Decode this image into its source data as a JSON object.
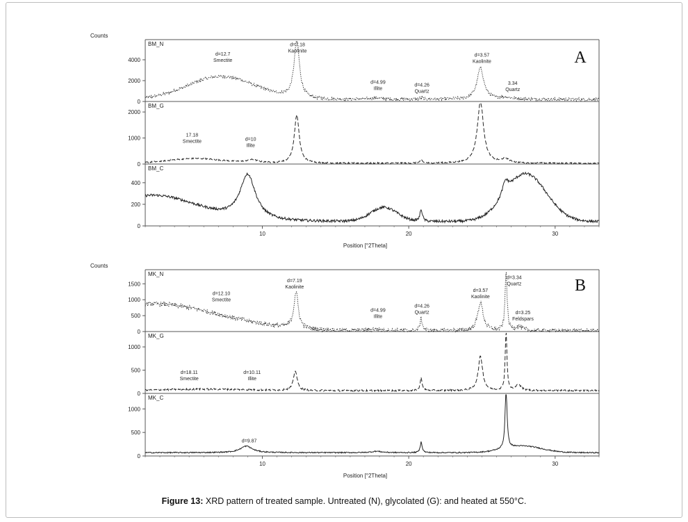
{
  "caption": {
    "label": "Figure 13:",
    "text": "XRD pattern of treated sample. Untreated (N), glycolated (G): and heated at 550°C."
  },
  "chart_data": [
    {
      "type": "line",
      "figure_label": "A",
      "ylabel": "Counts",
      "xlabel": "Position [°2Theta]",
      "xlim": [
        2,
        33
      ],
      "x_ticks": [
        10,
        20,
        30
      ],
      "line_color": "#222222",
      "panels": [
        {
          "name": "BM_N",
          "style": "dotted",
          "ylim": [
            0,
            5800
          ],
          "y_ticks": [
            0,
            2000,
            4000
          ],
          "baseline": 200,
          "broad": [
            {
              "center": 7.2,
              "width": 2.3,
              "height": 2200
            }
          ],
          "noise": 150,
          "peaks": [
            {
              "x": 12.35,
              "height": 5600,
              "width": 0.22
            },
            {
              "x": 17.75,
              "height": 120,
              "width": 0.5
            },
            {
              "x": 20.85,
              "height": 150,
              "width": 0.12
            },
            {
              "x": 24.9,
              "height": 3000,
              "width": 0.28
            },
            {
              "x": 26.6,
              "height": 180,
              "width": 0.5
            }
          ],
          "annotations": [
            {
              "x": 12.4,
              "y": 5300,
              "lines": [
                "d=7.18",
                "Kaolinite"
              ]
            },
            {
              "x": 7.3,
              "y": 4400,
              "lines": [
                "d=12.7",
                "Smectite"
              ]
            },
            {
              "x": 17.9,
              "y": 1700,
              "lines": [
                "d=4.99",
                "Illite"
              ]
            },
            {
              "x": 20.9,
              "y": 1450,
              "lines": [
                "d=4.26",
                "Quartz"
              ]
            },
            {
              "x": 25.0,
              "y": 4300,
              "lines": [
                "d=3.57",
                "Kaolinite"
              ]
            },
            {
              "x": 27.1,
              "y": 1600,
              "lines": [
                "3.34",
                "Quartz"
              ]
            }
          ]
        },
        {
          "name": "BM_G",
          "style": "dashed",
          "ylim": [
            0,
            2350
          ],
          "y_ticks": [
            0,
            1000,
            2000
          ],
          "baseline": 30,
          "broad": [
            {
              "center": 5.4,
              "width": 1.8,
              "height": 180
            }
          ],
          "noise": 25,
          "peaks": [
            {
              "x": 9.3,
              "height": 120,
              "width": 0.5
            },
            {
              "x": 12.35,
              "height": 1850,
              "width": 0.2
            },
            {
              "x": 20.85,
              "height": 120,
              "width": 0.1
            },
            {
              "x": 24.9,
              "height": 2350,
              "width": 0.26
            },
            {
              "x": 26.6,
              "height": 160,
              "width": 0.3
            }
          ],
          "annotations": [
            {
              "x": 5.2,
              "y": 1050,
              "lines": [
                "17.18",
                "Smectite"
              ]
            },
            {
              "x": 9.2,
              "y": 900,
              "lines": [
                "d=10",
                "Illite"
              ]
            }
          ]
        },
        {
          "name": "BM_C",
          "style": "solid",
          "ylim": [
            0,
            560
          ],
          "y_ticks": [
            0,
            200,
            400
          ],
          "baseline": 40,
          "broad": [
            {
              "center": 2.5,
              "width": 3.0,
              "height": 240
            },
            {
              "center": 18.3,
              "width": 0.9,
              "height": 130
            },
            {
              "center": 28.0,
              "width": 1.4,
              "height": 440
            }
          ],
          "noise": 12,
          "peaks": [
            {
              "x": 9.0,
              "height": 420,
              "width": 0.65
            },
            {
              "x": 20.85,
              "height": 110,
              "width": 0.1
            },
            {
              "x": 26.6,
              "height": 120,
              "width": 0.25
            }
          ],
          "annotations": []
        }
      ]
    },
    {
      "type": "line",
      "figure_label": "B",
      "ylabel": "Counts",
      "xlabel": "Position [°2Theta]",
      "xlim": [
        2,
        33
      ],
      "x_ticks": [
        10,
        20,
        30
      ],
      "line_color": "#222222",
      "panels": [
        {
          "name": "MK_N",
          "style": "dotted",
          "ylim": [
            0,
            1900
          ],
          "y_ticks": [
            0,
            500,
            1000,
            1500
          ],
          "baseline": 20,
          "broad": [
            {
              "center": 2.5,
              "width": 4.6,
              "height": 850
            }
          ],
          "noise": 70,
          "peaks": [
            {
              "x": 12.3,
              "height": 1150,
              "width": 0.18
            },
            {
              "x": 17.75,
              "height": 50,
              "width": 0.5
            },
            {
              "x": 20.85,
              "height": 380,
              "width": 0.1
            },
            {
              "x": 24.9,
              "height": 900,
              "width": 0.22
            },
            {
              "x": 26.65,
              "height": 1900,
              "width": 0.08
            },
            {
              "x": 27.5,
              "height": 130,
              "width": 0.3
            }
          ],
          "annotations": [
            {
              "x": 12.2,
              "y": 1550,
              "lines": [
                "d=7.19",
                "Kaolinite"
              ]
            },
            {
              "x": 7.2,
              "y": 1150,
              "lines": [
                "d=12.10",
                "Smectite"
              ]
            },
            {
              "x": 17.9,
              "y": 620,
              "lines": [
                "d=4.99",
                "Illite"
              ]
            },
            {
              "x": 20.9,
              "y": 750,
              "lines": [
                "d=4.26",
                "Quartz"
              ]
            },
            {
              "x": 24.9,
              "y": 1250,
              "lines": [
                "d=3.57",
                "Kaolinite"
              ]
            },
            {
              "x": 27.2,
              "y": 1650,
              "lines": [
                "d=3.34",
                "Quartz"
              ]
            },
            {
              "x": 27.8,
              "y": 550,
              "lines": [
                "d=3.25",
                "Feldspars"
              ]
            }
          ]
        },
        {
          "name": "MK_G",
          "style": "dashed",
          "ylim": [
            0,
            1300
          ],
          "y_ticks": [
            0,
            500,
            1000
          ],
          "baseline": 60,
          "broad": [
            {
              "center": 6.0,
              "width": 3.0,
              "height": 30
            }
          ],
          "noise": 18,
          "peaks": [
            {
              "x": 12.25,
              "height": 430,
              "width": 0.15
            },
            {
              "x": 20.85,
              "height": 280,
              "width": 0.08
            },
            {
              "x": 24.9,
              "height": 740,
              "width": 0.18
            },
            {
              "x": 26.65,
              "height": 1300,
              "width": 0.07
            },
            {
              "x": 27.5,
              "height": 130,
              "width": 0.2
            }
          ],
          "annotations": [
            {
              "x": 5.0,
              "y": 420,
              "lines": [
                "d=18.11",
                "Smectite"
              ]
            },
            {
              "x": 9.3,
              "y": 420,
              "lines": [
                "d=10.11",
                "Illite"
              ]
            }
          ]
        },
        {
          "name": "MK_C",
          "style": "solid",
          "ylim": [
            0,
            1300
          ],
          "y_ticks": [
            0,
            500,
            1000
          ],
          "baseline": 70,
          "broad": [
            {
              "center": 27.8,
              "width": 1.3,
              "height": 140
            }
          ],
          "noise": 12,
          "peaks": [
            {
              "x": 8.9,
              "height": 140,
              "width": 0.5
            },
            {
              "x": 17.8,
              "height": 30,
              "width": 0.4
            },
            {
              "x": 20.85,
              "height": 230,
              "width": 0.08
            },
            {
              "x": 26.65,
              "height": 1300,
              "width": 0.08
            }
          ],
          "annotations": [
            {
              "x": 9.1,
              "y": 290,
              "lines": [
                "d=9.87"
              ]
            }
          ]
        }
      ]
    }
  ]
}
